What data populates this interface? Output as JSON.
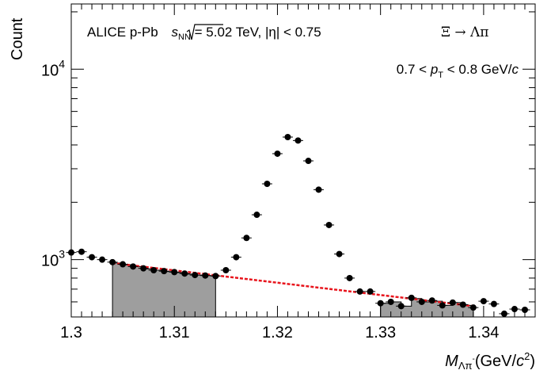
{
  "chart_data": {
    "type": "scatter",
    "ylabel": "Count",
    "xlabel_main": "M",
    "xlabel_sub": "Λπ",
    "xlabel_sup": "-",
    "xlabel_units_pre": "(GeV/",
    "xlabel_units_c": "c",
    "xlabel_units_pow": "2",
    "xlabel_units_post": ")",
    "annotation_left_pre": "ALICE p-Pb ",
    "annotation_sqrt_s": "s",
    "annotation_sqrt_sub": "NN",
    "annotation_left_post": " = 5.02 TeV, |η| < 0.75",
    "annotation_right": "Ξ → Λπ",
    "pt_pre": "0.7 < ",
    "pt_p": "p",
    "pt_sub": "T",
    "pt_post": " < 0.8 GeV/",
    "pt_c": "c",
    "xlim": [
      1.3,
      1.345
    ],
    "ylim": [
      500,
      22000
    ],
    "y_scale": "log",
    "x_ticks": [
      1.3,
      1.31,
      1.32,
      1.33,
      1.34
    ],
    "x_tick_labels": [
      "1.3",
      "1.31",
      "1.32",
      "1.33",
      "1.34"
    ],
    "y_major_ticks": [
      {
        "value": 1000,
        "base": "10",
        "exp": "3"
      },
      {
        "value": 10000,
        "base": "10",
        "exp": "4"
      }
    ],
    "y_minor_ticks": [
      600,
      700,
      800,
      900,
      2000,
      3000,
      4000,
      5000,
      6000,
      7000,
      8000,
      9000,
      20000
    ],
    "points": {
      "x": [
        1.3,
        1.301,
        1.302,
        1.303,
        1.304,
        1.305,
        1.306,
        1.307,
        1.308,
        1.309,
        1.31,
        1.311,
        1.312,
        1.313,
        1.314,
        1.315,
        1.316,
        1.317,
        1.318,
        1.319,
        1.32,
        1.321,
        1.322,
        1.323,
        1.324,
        1.325,
        1.326,
        1.327,
        1.328,
        1.329,
        1.33,
        1.331,
        1.332,
        1.333,
        1.334,
        1.335,
        1.336,
        1.337,
        1.338,
        1.339,
        1.34,
        1.341,
        1.342,
        1.343,
        1.344
      ],
      "y": [
        1090,
        1100,
        1030,
        1000,
        970,
        945,
        920,
        900,
        880,
        870,
        860,
        845,
        830,
        825,
        820,
        880,
        1030,
        1300,
        1720,
        2500,
        3600,
        4400,
        4220,
        3300,
        2330,
        1520,
        1070,
        800,
        680,
        680,
        590,
        600,
        570,
        630,
        600,
        610,
        575,
        595,
        580,
        560,
        605,
        585,
        520,
        550,
        545
      ]
    },
    "background_fit": {
      "x": [
        1.304,
        1.339
      ],
      "y": [
        960,
        570
      ]
    },
    "sidebands": [
      {
        "x_start": 1.304,
        "x_end": 1.314,
        "values": [
          960,
          940,
          920,
          895,
          880,
          865,
          855,
          840,
          830,
          825
        ]
      },
      {
        "x_start": 1.33,
        "x_end": 1.339,
        "values": [
          590,
          600,
          570,
          625,
          600,
          605,
          575,
          595,
          575
        ]
      }
    ],
    "colors": {
      "fit": "#e8141c",
      "sideband_fill": "#9e9e9e",
      "marker": "#000000"
    }
  }
}
